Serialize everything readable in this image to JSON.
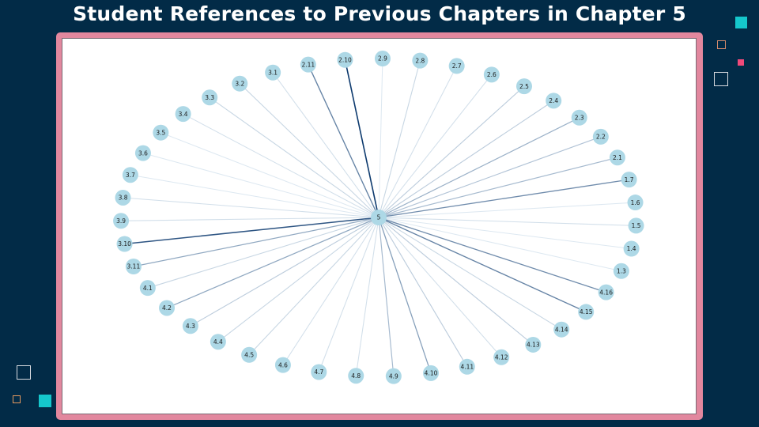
{
  "title": "Student References to Previous Chapters in Chapter 5",
  "colors": {
    "background": "#022b47",
    "frame": "#e2879e",
    "panel": "#ffffff",
    "node": "#add8e6",
    "edge_scale": [
      "#e8f1f8",
      "#0d3a6e"
    ]
  },
  "decorations": {
    "top_right": [
      "teal-square",
      "orange-outline-square",
      "pink-square",
      "white-outline-square"
    ],
    "bottom_left": [
      "white-outline-square",
      "orange-outline-square",
      "teal-square"
    ]
  },
  "graph": {
    "center": "5",
    "nodes": [
      "2.10",
      "2.9",
      "2.8",
      "2.7",
      "2.6",
      "2.5",
      "2.4",
      "2.3",
      "2.2",
      "2.1",
      "1.7",
      "1.6",
      "1.5",
      "1.4",
      "1.3",
      "4.16",
      "4.15",
      "4.14",
      "4.13",
      "4.12",
      "4.11",
      "4.10",
      "4.9",
      "4.8",
      "4.7",
      "4.6",
      "4.5",
      "4.4",
      "4.3",
      "4.2",
      "4.1",
      "3.11",
      "3.10",
      "3.9",
      "3.8",
      "3.7",
      "3.6",
      "3.5",
      "3.4",
      "3.3",
      "3.2",
      "3.1",
      "2.11"
    ],
    "edge_weights": [
      1.0,
      0.05,
      0.15,
      0.1,
      0.1,
      0.2,
      0.2,
      0.35,
      0.25,
      0.3,
      0.55,
      0.05,
      0.1,
      0.05,
      0.05,
      0.55,
      0.6,
      0.15,
      0.2,
      0.1,
      0.2,
      0.45,
      0.3,
      0.1,
      0.1,
      0.1,
      0.15,
      0.15,
      0.2,
      0.4,
      0.15,
      0.4,
      0.85,
      0.1,
      0.1,
      0.05,
      0.05,
      0.05,
      0.1,
      0.15,
      0.15,
      0.1,
      0.6
    ]
  }
}
